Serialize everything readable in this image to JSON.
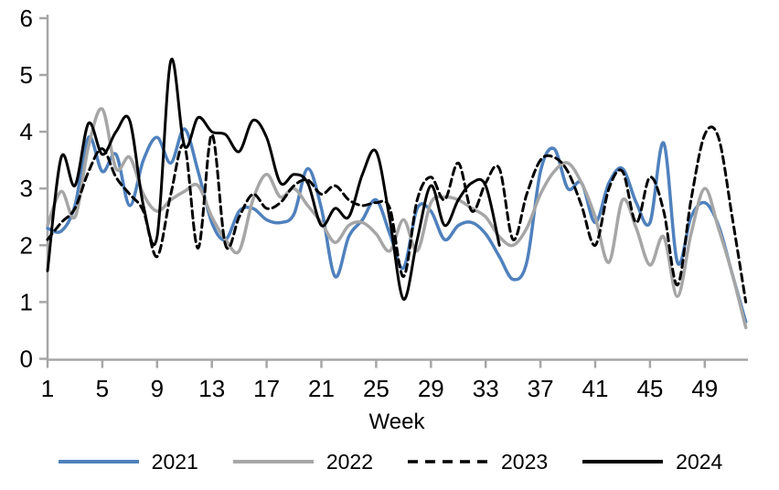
{
  "chart_data": {
    "type": "line",
    "title": "",
    "xlabel": "Week",
    "ylabel": "",
    "xlim": [
      1,
      52
    ],
    "ylim": [
      0,
      6
    ],
    "grid": false,
    "legend_position": "bottom",
    "axis_color": "#A6A6A6",
    "text_color": "#000000",
    "background_color": "#FFFFFF",
    "x_ticks": [
      1,
      5,
      9,
      13,
      17,
      21,
      25,
      29,
      33,
      37,
      41,
      45,
      49
    ],
    "y_ticks": [
      0,
      1,
      2,
      3,
      4,
      5,
      6
    ],
    "x": [
      1,
      2,
      3,
      4,
      5,
      6,
      7,
      8,
      9,
      10,
      11,
      12,
      13,
      14,
      15,
      16,
      17,
      18,
      19,
      20,
      21,
      22,
      23,
      24,
      25,
      26,
      27,
      28,
      29,
      30,
      31,
      32,
      33,
      34,
      35,
      36,
      37,
      38,
      39,
      40,
      41,
      42,
      43,
      44,
      45,
      46,
      47,
      48,
      49,
      50,
      51,
      52
    ],
    "series": [
      {
        "name": "2021",
        "color": "#4F81BD",
        "dash": "solid",
        "line_width": 3.5,
        "values": [
          2.3,
          2.25,
          2.7,
          3.9,
          3.3,
          3.6,
          2.7,
          3.5,
          3.9,
          3.45,
          4.05,
          3.3,
          2.4,
          2.1,
          2.6,
          2.65,
          2.45,
          2.4,
          2.55,
          3.35,
          2.65,
          1.45,
          2.15,
          2.45,
          2.8,
          2.2,
          1.6,
          2.65,
          2.6,
          2.1,
          2.35,
          2.4,
          2.2,
          1.8,
          1.4,
          1.7,
          3.3,
          3.7,
          3.0,
          3.1,
          2.4,
          3.1,
          3.35,
          2.75,
          2.4,
          3.8,
          1.7,
          2.5,
          2.75,
          2.35,
          1.5,
          0.65
        ]
      },
      {
        "name": "2022",
        "color": "#A6A6A6",
        "dash": "solid",
        "line_width": 3.5,
        "values": [
          2.35,
          2.95,
          2.5,
          3.75,
          4.4,
          3.35,
          3.55,
          2.9,
          2.6,
          2.8,
          2.95,
          3.05,
          2.5,
          2.1,
          1.9,
          2.8,
          3.25,
          2.85,
          3.0,
          2.7,
          2.4,
          2.05,
          2.35,
          2.4,
          2.2,
          1.9,
          2.45,
          1.9,
          2.75,
          2.85,
          2.8,
          2.65,
          2.5,
          2.15,
          2.0,
          2.3,
          2.9,
          3.3,
          3.45,
          3.1,
          2.5,
          1.7,
          2.8,
          2.3,
          1.65,
          2.15,
          1.1,
          2.2,
          3.0,
          2.3,
          1.5,
          0.55
        ]
      },
      {
        "name": "2023",
        "color": "#000000",
        "dash": "dashed",
        "line_width": 3,
        "values": [
          2.1,
          2.4,
          2.65,
          3.3,
          3.7,
          3.2,
          2.9,
          2.6,
          1.8,
          2.9,
          3.75,
          1.95,
          3.95,
          2.0,
          2.5,
          2.9,
          2.65,
          2.75,
          3.05,
          3.15,
          2.9,
          3.05,
          2.8,
          2.7,
          2.75,
          2.65,
          1.45,
          2.8,
          3.2,
          2.8,
          3.45,
          2.6,
          3.1,
          3.35,
          2.1,
          2.9,
          3.5,
          3.55,
          3.3,
          2.7,
          2.0,
          3.0,
          3.3,
          2.4,
          3.2,
          2.6,
          1.3,
          2.8,
          3.95,
          3.9,
          2.5,
          1.0
        ]
      },
      {
        "name": "2024",
        "color": "#000000",
        "dash": "solid",
        "line_width": 3,
        "values": [
          1.55,
          3.55,
          3.05,
          4.15,
          3.6,
          4.0,
          4.2,
          2.7,
          2.15,
          5.25,
          3.75,
          4.25,
          4.0,
          3.95,
          3.65,
          4.2,
          3.9,
          3.1,
          3.25,
          3.1,
          2.35,
          2.65,
          2.5,
          3.25,
          3.65,
          2.45,
          1.05,
          2.1,
          3.05,
          2.35,
          2.8,
          3.1,
          3.05,
          2.0
        ]
      }
    ]
  }
}
